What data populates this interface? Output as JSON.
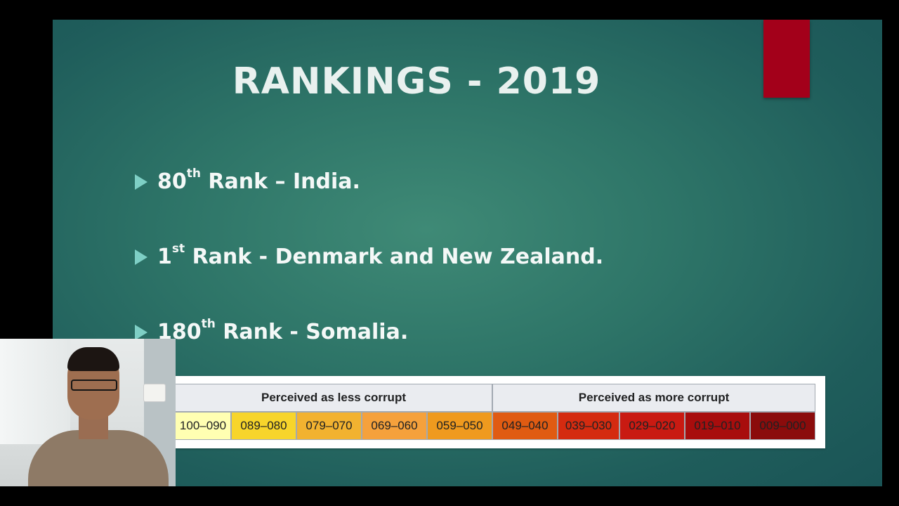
{
  "slide": {
    "title": "RANKINGS - 2019",
    "bullets": [
      {
        "num": "80",
        "sup": "th",
        "text": " Rank – India."
      },
      {
        "num": "1",
        "sup": "st",
        "text": " Rank - Denmark and New Zealand."
      },
      {
        "num": "180",
        "sup": "th",
        "text": " Rank - Somalia."
      }
    ]
  },
  "legend": {
    "left_header": "Perceived as less corrupt",
    "right_header": "Perceived as more corrupt",
    "ranges": [
      "100–090",
      "089–080",
      "079–070",
      "069–060",
      "059–050",
      "049–040",
      "039–030",
      "029–020",
      "019–010",
      "009–000"
    ],
    "range_colors": [
      "#ffffb2",
      "#f7d52b",
      "#f2b230",
      "#f5a13c",
      "#ef9a1e",
      "#e05b12",
      "#d42b10",
      "#c91a12",
      "#a80d0d",
      "#8b0c0c"
    ]
  },
  "colors": {
    "accent": "#a3001a",
    "bullet_arrow": "#7ecfc5"
  },
  "icons": {
    "bullet": "triangle-right-icon"
  }
}
